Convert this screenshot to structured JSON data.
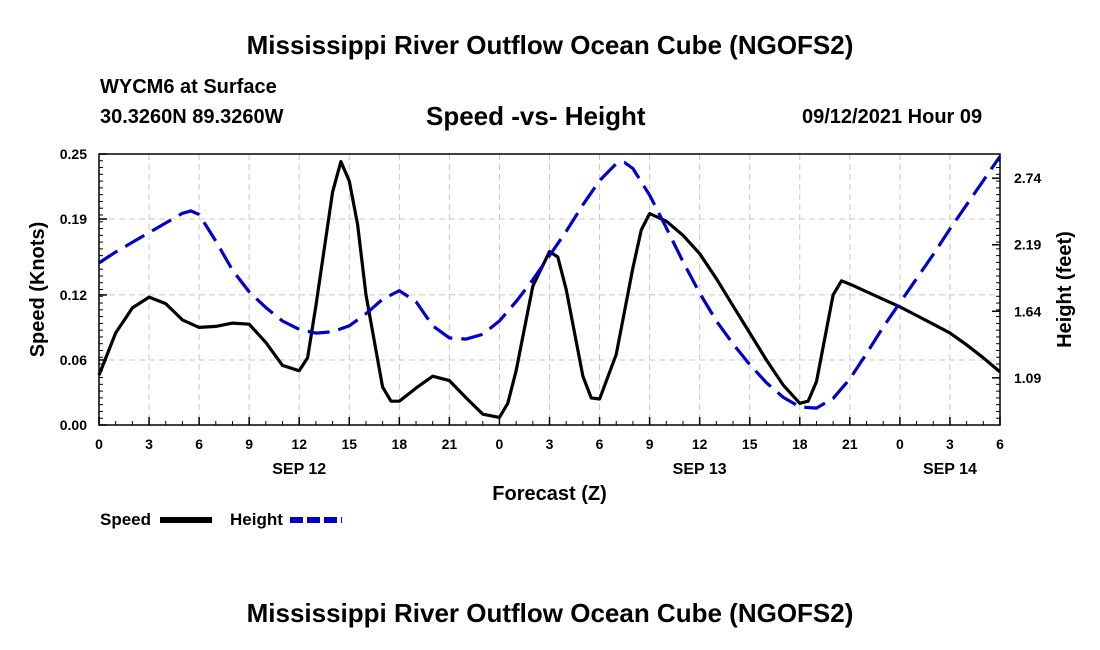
{
  "page": {
    "top_title": "Mississippi River Outflow Ocean Cube (NGOFS2)",
    "bottom_title": "Mississippi River Outflow Ocean Cube (NGOFS2)",
    "station": "WYCM6 at Surface",
    "coords": "30.3260N  89.3260W",
    "subtitle": "Speed -vs- Height",
    "datetime": "09/12/2021 Hour 09"
  },
  "colors": {
    "speed": "#000000",
    "height": "#0000cc",
    "grid": "#c8c8c8"
  },
  "chart_data": {
    "type": "line",
    "title": "Speed -vs- Height",
    "xlabel": "Forecast (Z)",
    "ylabel": "Speed (Knots)",
    "y2label": "Height (feet)",
    "xlim": [
      0,
      54
    ],
    "ylim": [
      0,
      0.25
    ],
    "y2lim": [
      0.7,
      2.94
    ],
    "x_ticks": [
      0,
      3,
      6,
      9,
      12,
      15,
      18,
      21,
      24,
      27,
      30,
      33,
      36,
      39,
      42,
      45,
      48,
      51,
      54
    ],
    "x_tick_labels": [
      "0",
      "3",
      "6",
      "9",
      "12",
      "15",
      "18",
      "21",
      "0",
      "3",
      "6",
      "9",
      "12",
      "15",
      "18",
      "21",
      "0",
      "3",
      "6"
    ],
    "date_labels": [
      {
        "x": 12,
        "label": "SEP 12"
      },
      {
        "x": 36,
        "label": "SEP 13"
      },
      {
        "x": 51,
        "label": "SEP 14"
      }
    ],
    "y_ticks": [
      0.0,
      0.06,
      0.12,
      0.19,
      0.25
    ],
    "y_tick_labels": [
      "0.00",
      "0.06",
      "0.12",
      "0.19",
      "0.25"
    ],
    "y2_ticks": [
      1.09,
      1.64,
      2.19,
      2.74
    ],
    "y2_tick_labels": [
      "1.09",
      "1.64",
      "2.19",
      "2.74"
    ],
    "series": [
      {
        "name": "Speed",
        "axis": "left",
        "style": "solid",
        "x": [
          0,
          1,
          2,
          3,
          4,
          5,
          6,
          7,
          8,
          9,
          10,
          11,
          12,
          12.5,
          13,
          14,
          14.5,
          15,
          15.5,
          16,
          17,
          17.5,
          18,
          19,
          20,
          21,
          22,
          23,
          24,
          24.5,
          25,
          26,
          27,
          27.5,
          28,
          29,
          29.5,
          30,
          31,
          32,
          32.5,
          33,
          34,
          35,
          36,
          37,
          38,
          39,
          40,
          41,
          42,
          42.5,
          43,
          44,
          44.5,
          45,
          46,
          47,
          48,
          49,
          50,
          51,
          52,
          53,
          54
        ],
        "values": [
          0.046,
          0.085,
          0.108,
          0.118,
          0.112,
          0.097,
          0.09,
          0.091,
          0.094,
          0.093,
          0.076,
          0.055,
          0.05,
          0.062,
          0.11,
          0.215,
          0.243,
          0.225,
          0.185,
          0.12,
          0.035,
          0.022,
          0.022,
          0.034,
          0.045,
          0.041,
          0.025,
          0.01,
          0.007,
          0.02,
          0.05,
          0.128,
          0.16,
          0.155,
          0.125,
          0.045,
          0.025,
          0.024,
          0.065,
          0.145,
          0.18,
          0.195,
          0.188,
          0.175,
          0.158,
          0.135,
          0.11,
          0.085,
          0.06,
          0.037,
          0.02,
          0.022,
          0.04,
          0.12,
          0.133,
          0.13,
          0.123,
          0.116,
          0.109,
          0.101,
          0.093,
          0.085,
          0.074,
          0.062,
          0.049
        ]
      },
      {
        "name": "Height",
        "axis": "right",
        "style": "dashed",
        "x": [
          0,
          1,
          2,
          3,
          4,
          5,
          5.5,
          6,
          7,
          8,
          9,
          10,
          11,
          12,
          13,
          14,
          15,
          16,
          17,
          18,
          19,
          20,
          21,
          22,
          23,
          24,
          25,
          26,
          27,
          28,
          29,
          30,
          31,
          31.5,
          32,
          33,
          34,
          35,
          36,
          37,
          38,
          39,
          40,
          41,
          42,
          43,
          44,
          45,
          46,
          47,
          48,
          49,
          50,
          51,
          52,
          53,
          54
        ],
        "values": [
          2.04,
          2.13,
          2.21,
          2.29,
          2.37,
          2.45,
          2.47,
          2.44,
          2.22,
          1.98,
          1.8,
          1.67,
          1.56,
          1.49,
          1.46,
          1.47,
          1.52,
          1.62,
          1.74,
          1.81,
          1.72,
          1.52,
          1.42,
          1.41,
          1.45,
          1.56,
          1.72,
          1.9,
          2.1,
          2.3,
          2.52,
          2.72,
          2.86,
          2.87,
          2.82,
          2.6,
          2.33,
          2.05,
          1.79,
          1.56,
          1.37,
          1.2,
          1.05,
          0.93,
          0.85,
          0.84,
          0.92,
          1.08,
          1.29,
          1.51,
          1.71,
          1.91,
          2.11,
          2.32,
          2.52,
          2.72,
          2.92
        ]
      }
    ],
    "legend": [
      {
        "label": "Speed",
        "series": 0
      },
      {
        "label": "Height",
        "series": 1
      }
    ],
    "grid": true
  }
}
